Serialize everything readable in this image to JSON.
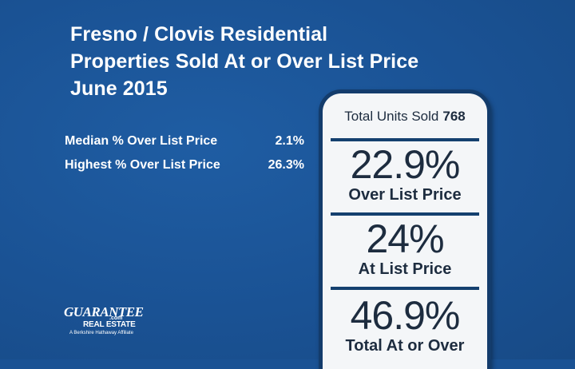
{
  "title": {
    "line1": "Fresno / Clovis Residential",
    "line2": "Properties Sold At or Over List Price",
    "line3": "June 2015"
  },
  "stats": [
    {
      "label": "Median % Over List Price",
      "value": "2.1%"
    },
    {
      "label": "Highest % Over List Price",
      "value": "26.3%"
    }
  ],
  "panel": {
    "header_label": "Total Units Sold",
    "header_value": "768",
    "blocks": [
      {
        "big": "22.9%",
        "caption": "Over List Price"
      },
      {
        "big": "24%",
        "caption": "At List Price"
      },
      {
        "big": "46.9%",
        "caption": "Total At or Over"
      }
    ]
  },
  "logo": {
    "main": "GUARANTEE",
    "com": ".com",
    "sub": "REAL ESTATE",
    "tagline": "A Berkshire Hathaway Affiliate"
  },
  "colors": {
    "background": "#1a5294",
    "panel": "#f4f6f8",
    "panel_border": "#133c6c",
    "panel_text": "#1d2c3f"
  }
}
